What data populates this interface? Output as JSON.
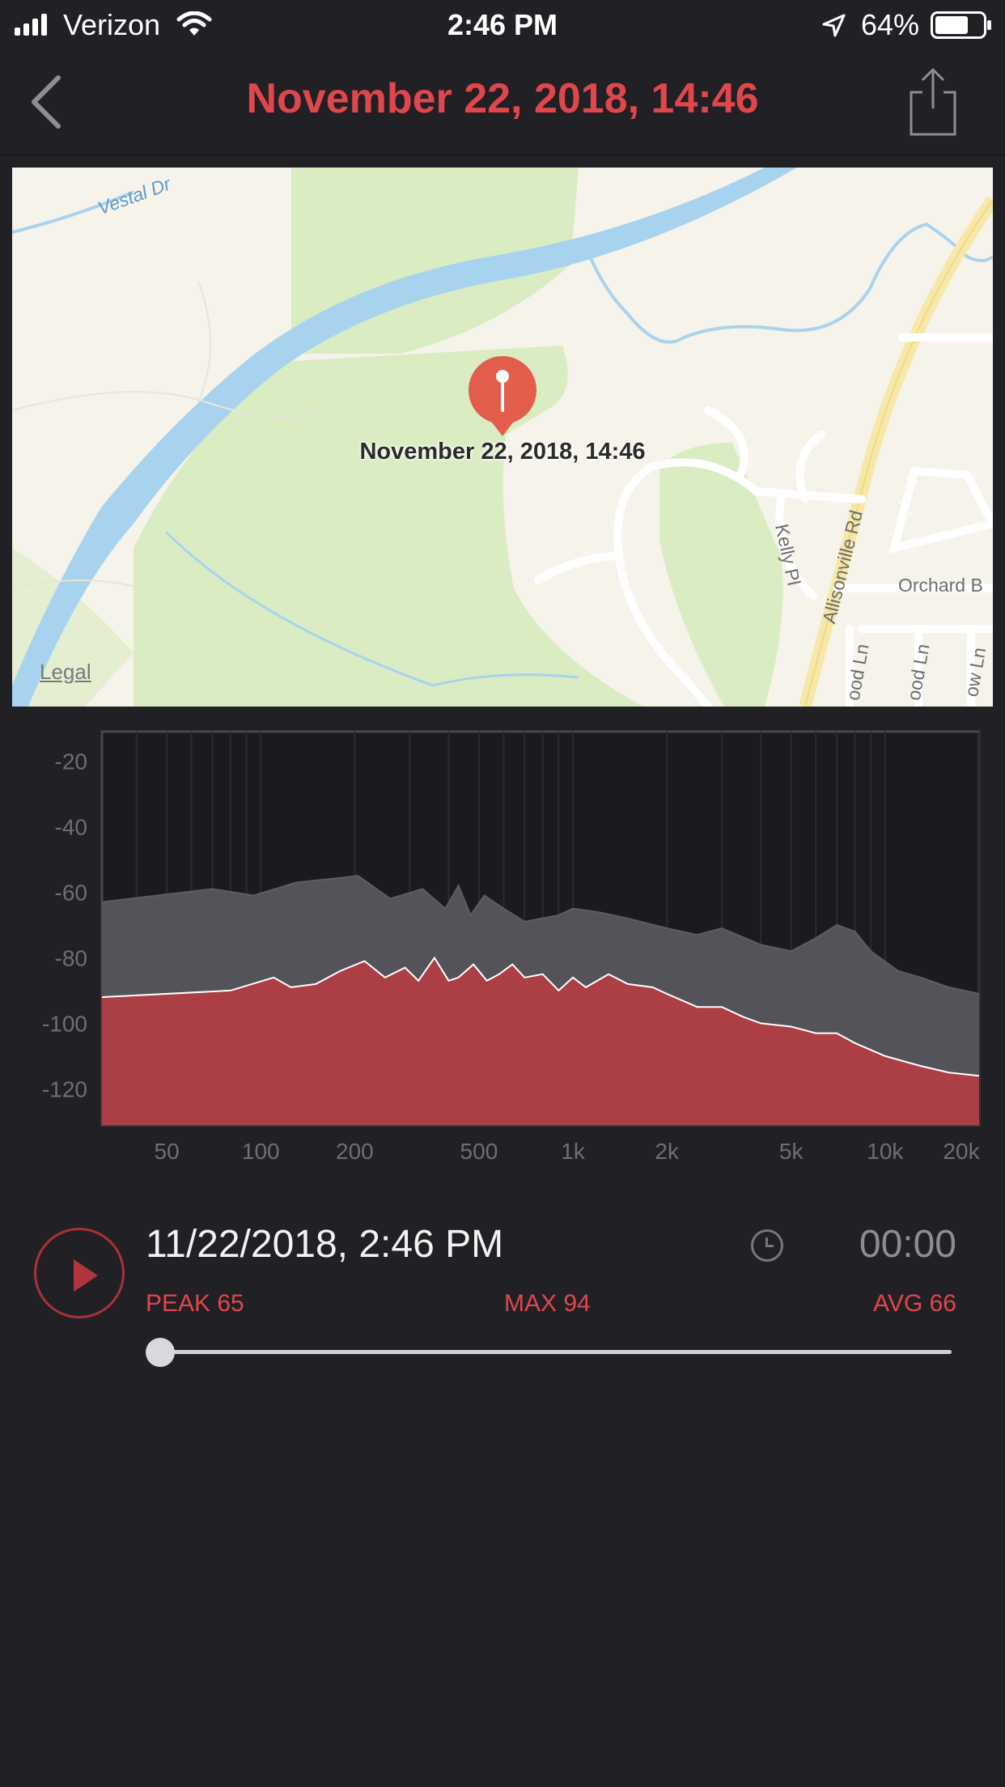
{
  "status_bar": {
    "carrier": "Verizon",
    "time": "2:46 PM",
    "battery_percent": "64%"
  },
  "nav": {
    "title": "November 22, 2018, 14:46",
    "accent_color": "#e0474c"
  },
  "map": {
    "pin_label": "November 22, 2018, 14:46",
    "labels": {
      "river": "Vestal Dr",
      "kelly": "Kelly Pl",
      "allisonville": "Allisonville Rd",
      "orchard": "Orchard B",
      "lane1": "ood Ln",
      "lane2": "ood Ln",
      "lane3": "ow Ln"
    },
    "legal": "Legal"
  },
  "chart_data": {
    "type": "area",
    "x_scale": "log",
    "x_tick_labels": [
      "50",
      "100",
      "200",
      "500",
      "1k",
      "2k",
      "5k",
      "10k",
      "20k"
    ],
    "x_ticks_hz": [
      50,
      100,
      200,
      500,
      1000,
      2000,
      5000,
      10000,
      20000
    ],
    "y_tick_labels": [
      "-20",
      "-40",
      "-60",
      "-80",
      "-100",
      "-120"
    ],
    "ylim": [
      -131,
      -11
    ],
    "xlim_hz": [
      31,
      20000
    ],
    "series": [
      {
        "color": "#545359",
        "x_hz": [
          31,
          70,
          95,
          130,
          165,
          205,
          260,
          330,
          390,
          430,
          470,
          520,
          600,
          700,
          900,
          1000,
          1200,
          1500,
          2000,
          2500,
          3000,
          4000,
          5000,
          6000,
          7000,
          8000,
          9000,
          11000,
          13000,
          16000,
          20000
        ],
        "values": [
          -63,
          -59,
          -61,
          -57,
          -56,
          -55,
          -62,
          -59,
          -65,
          -58,
          -67,
          -61,
          -65,
          -69,
          -67,
          -65,
          -66,
          -68,
          -71,
          -73,
          -71,
          -76,
          -78,
          -74,
          -70,
          -72,
          -78,
          -84,
          -86,
          -89,
          -91
        ]
      },
      {
        "color": "#ac3e45",
        "x_hz": [
          31,
          80,
          110,
          125,
          150,
          180,
          215,
          250,
          290,
          320,
          360,
          400,
          430,
          480,
          530,
          580,
          640,
          700,
          800,
          900,
          1000,
          1100,
          1300,
          1500,
          1800,
          2000,
          2500,
          3000,
          3500,
          4000,
          5000,
          6000,
          7000,
          8000,
          10000,
          13000,
          16000,
          20000
        ],
        "values": [
          -92,
          -90,
          -86,
          -89,
          -88,
          -84,
          -81,
          -86,
          -83,
          -87,
          -80,
          -87,
          -86,
          -82,
          -87,
          -85,
          -82,
          -86,
          -85,
          -90,
          -86,
          -89,
          -85,
          -88,
          -89,
          -91,
          -95,
          -95,
          -98,
          -100,
          -101,
          -103,
          -103,
          -106,
          -110,
          -113,
          -115,
          -116
        ]
      }
    ]
  },
  "recording": {
    "date": "11/22/2018, 2:46 PM",
    "duration": "00:00",
    "peak": "PEAK 65",
    "max": "MAX 94",
    "avg": "AVG 66",
    "progress": 0
  }
}
